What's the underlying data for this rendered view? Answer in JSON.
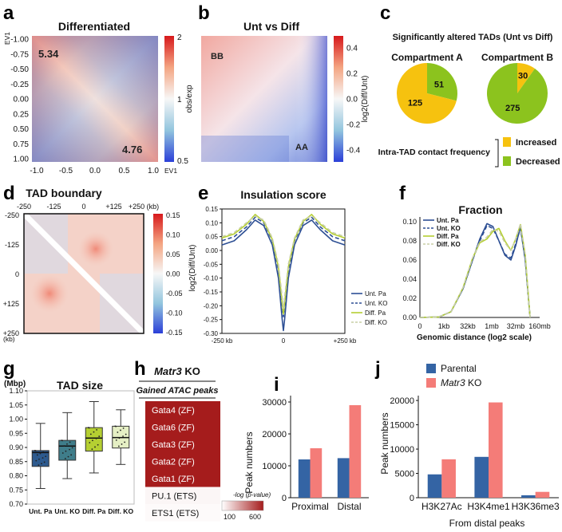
{
  "panels": {
    "a": {
      "label": "a",
      "title": "Differentiated",
      "axis_label": "EV1",
      "x_axis_label": "EV1",
      "x_ticks": [
        "-1.0",
        "-0.5",
        "0.0",
        "0.5",
        "1.0"
      ],
      "y_ticks": [
        "-1.00",
        "-0.75",
        "-0.50",
        "-0.25",
        "0.00",
        "0.25",
        "0.50",
        "0.75",
        "1.00"
      ],
      "annotations": [
        "5.34",
        "4.76"
      ],
      "colorbar_label": "obs/exp",
      "colorbar_ticks": [
        "2",
        "1",
        "0.5"
      ]
    },
    "b": {
      "label": "b",
      "title": "Unt vs Diff",
      "annotations": [
        "BB",
        "AA"
      ],
      "colorbar_label": "log2(Diff/Unt)",
      "colorbar_ticks": [
        "0.4",
        "0.2",
        "0.0",
        "-0.2",
        "-0.4"
      ]
    },
    "c": {
      "label": "c",
      "title": "Significantly altered TADs (Unt vs Diff)",
      "legend_title": "Intra-TAD contact frequency",
      "legend": [
        {
          "label": "Increased",
          "color": "#f6c20f"
        },
        {
          "label": "Decreased",
          "color": "#8cc31e"
        }
      ]
    },
    "d": {
      "label": "d",
      "title": "TAD boundary",
      "x_ticks": [
        "-250",
        "-125",
        "0",
        "+125",
        "+250 (kb)"
      ],
      "y_ticks": [
        "-250",
        "-125",
        "0",
        "+125",
        "+250"
      ],
      "y_unit": "(kb)",
      "colorbar_ticks": [
        "0.15",
        "0.10",
        "0.05",
        "0.00",
        "-0.05",
        "-0.10",
        "-0.15"
      ]
    },
    "e": {
      "label": "e"
    },
    "f": {
      "label": "f"
    },
    "g": {
      "label": "g"
    },
    "h": {
      "label": "h",
      "title_gene": "Matr3",
      "title_suffix": " KO",
      "subtitle": "Gained ATAC peaks",
      "rows": [
        "Gata4 (ZF)",
        "Gata6 (ZF)",
        "Gata3 (ZF)",
        "Gata2 (ZF)",
        "Gata1 (ZF)",
        "PU.1 (ETS)",
        "ETS1 (ETS)"
      ],
      "scale_label": "-log (p-value)",
      "scale_ticks": [
        "100",
        "600"
      ]
    },
    "i": {
      "label": "i"
    },
    "j": {
      "label": "j"
    }
  },
  "chart_data": [
    {
      "id": "c",
      "type": "pie",
      "charts": [
        {
          "title": "Compartment A",
          "slices": [
            {
              "label": "Decreased",
              "value": 51
            },
            {
              "label": "Increased",
              "value": 125
            }
          ]
        },
        {
          "title": "Compartment B",
          "slices": [
            {
              "label": "Increased",
              "value": 30
            },
            {
              "label": "Decreased",
              "value": 275
            }
          ]
        }
      ]
    },
    {
      "id": "e",
      "type": "line",
      "title": "Insulation score",
      "xlabel": "",
      "ylabel": "log2(Diff/Unt)",
      "x_ticks": [
        "-250 kb",
        "0",
        "+250 kb"
      ],
      "xlim": [
        -250,
        250
      ],
      "ylim": [
        -0.3,
        0.15
      ],
      "y_ticks": [
        "0.15",
        "0.10",
        "0.05",
        "0.00",
        "-0.05",
        "-0.10",
        "-0.15",
        "-0.20",
        "-0.25",
        "-0.30"
      ],
      "x": [
        -250,
        -200,
        -150,
        -115,
        -80,
        -45,
        -20,
        -5,
        0,
        5,
        20,
        45,
        80,
        115,
        150,
        200,
        250
      ],
      "series": [
        {
          "name": "Unt. Pa",
          "color": "#2d4f94",
          "dash": "",
          "values": [
            0.02,
            0.035,
            0.075,
            0.11,
            0.09,
            0.02,
            -0.1,
            -0.25,
            -0.29,
            -0.25,
            -0.1,
            0.02,
            0.09,
            0.11,
            0.075,
            0.035,
            0.02
          ]
        },
        {
          "name": "Unt. KO",
          "color": "#2d4f94",
          "dash": "5,3",
          "values": [
            0.035,
            0.05,
            0.085,
            0.12,
            0.1,
            0.035,
            -0.07,
            -0.2,
            -0.24,
            -0.2,
            -0.07,
            0.035,
            0.1,
            0.12,
            0.085,
            0.05,
            0.035
          ]
        },
        {
          "name": "Diff. Pa",
          "color": "#b5cf32",
          "dash": "",
          "values": [
            0.045,
            0.06,
            0.095,
            0.13,
            0.105,
            0.04,
            -0.06,
            -0.19,
            -0.23,
            -0.19,
            -0.06,
            0.04,
            0.105,
            0.13,
            0.095,
            0.06,
            0.045
          ]
        },
        {
          "name": "Diff. KO",
          "color": "#c8cfa5",
          "dash": "5,3",
          "values": [
            0.05,
            0.065,
            0.1,
            0.125,
            0.11,
            0.045,
            -0.05,
            -0.17,
            -0.21,
            -0.17,
            -0.05,
            0.045,
            0.11,
            0.125,
            0.1,
            0.065,
            0.05
          ]
        }
      ]
    },
    {
      "id": "f",
      "type": "line",
      "title": "Fraction",
      "xlabel": "Genomic distance (log2 scale)",
      "x_ticks": [
        "0",
        "1kb",
        "32kb",
        "1mb",
        "32mb",
        "160mb"
      ],
      "xlim": [
        0,
        5
      ],
      "ylim": [
        0,
        0.105
      ],
      "y_ticks": [
        "0.10",
        "0.08",
        "0.06",
        "0.04",
        "0.02",
        "0.00"
      ],
      "x": [
        0,
        0.8,
        1.3,
        1.8,
        2.2,
        2.5,
        2.8,
        3.05,
        3.3,
        3.55,
        3.8,
        4.0,
        4.2,
        4.4,
        4.6
      ],
      "series": [
        {
          "name": "Unt. Pa",
          "color": "#2d4f94",
          "dash": "",
          "values": [
            0,
            0.0005,
            0.006,
            0.03,
            0.06,
            0.082,
            0.098,
            0.095,
            0.08,
            0.065,
            0.06,
            0.075,
            0.095,
            0.06,
            0
          ]
        },
        {
          "name": "Unt. KO",
          "color": "#2d4f94",
          "dash": "5,3",
          "values": [
            0,
            0.0005,
            0.006,
            0.03,
            0.06,
            0.08,
            0.096,
            0.093,
            0.08,
            0.066,
            0.062,
            0.077,
            0.093,
            0.06,
            0
          ]
        },
        {
          "name": "Diff. Pa",
          "color": "#b5cf32",
          "dash": "",
          "values": [
            0,
            0.0005,
            0.006,
            0.031,
            0.062,
            0.078,
            0.082,
            0.09,
            0.093,
            0.08,
            0.07,
            0.082,
            0.097,
            0.065,
            0
          ]
        },
        {
          "name": "Diff. KO",
          "color": "#c8cfa5",
          "dash": "5,3",
          "values": [
            0,
            0.0005,
            0.006,
            0.031,
            0.062,
            0.079,
            0.084,
            0.092,
            0.09,
            0.078,
            0.07,
            0.082,
            0.098,
            0.065,
            0
          ]
        }
      ]
    },
    {
      "id": "g",
      "type": "box",
      "title": "TAD size",
      "ylabel": "(Mbp)",
      "ylim": [
        0.7,
        1.1
      ],
      "y_ticks": [
        "1.10",
        "1.05",
        "1.00",
        "0.95",
        "0.90",
        "0.85",
        "0.80",
        "0.75",
        "0.70"
      ],
      "boxes": [
        {
          "name": "Unt. Pa",
          "color": "#2d5a8e",
          "min": 0.755,
          "q1": 0.833,
          "median": 0.882,
          "q3": 0.889,
          "max": 0.985
        },
        {
          "name": "Unt. KO",
          "color": "#3f7d8a",
          "min": 0.79,
          "q1": 0.855,
          "median": 0.905,
          "q3": 0.925,
          "max": 1.023
        },
        {
          "name": "Diff. Pa",
          "color": "#b5cf32",
          "min": 0.81,
          "q1": 0.887,
          "median": 0.933,
          "q3": 0.97,
          "max": 1.062
        },
        {
          "name": "Diff. KO",
          "color": "#e5efc4",
          "min": 0.84,
          "q1": 0.898,
          "median": 0.935,
          "q3": 0.975,
          "max": 1.033
        }
      ]
    },
    {
      "id": "h",
      "type": "heatmap",
      "title": "Matr3 KO Gained ATAC peaks",
      "rows": [
        "Gata4 (ZF)",
        "Gata6 (ZF)",
        "Gata3 (ZF)",
        "Gata2 (ZF)",
        "Gata1 (ZF)",
        "PU.1 (ETS)",
        "ETS1 (ETS)"
      ],
      "values": [
        600,
        600,
        600,
        600,
        600,
        120,
        110
      ],
      "scale": [
        100,
        600
      ]
    },
    {
      "id": "i",
      "type": "bar",
      "ylabel": "Peak numbers",
      "categories": [
        "Proximal",
        "Distal"
      ],
      "ylim": [
        0,
        32000
      ],
      "y_ticks": [
        "30000",
        "20000",
        "10000",
        "0"
      ],
      "series": [
        {
          "name": "Parental",
          "color": "#3464a4",
          "values": [
            12000,
            12400
          ]
        },
        {
          "name": "Matr3 KO",
          "color": "#f47c78",
          "values": [
            15500,
            29000
          ]
        }
      ]
    },
    {
      "id": "j",
      "type": "bar",
      "ylabel": "Peak numbers",
      "xlabel": "From distal peaks",
      "categories": [
        "H3K27Ac",
        "H3K4me1",
        "H3K36me3"
      ],
      "ylim": [
        0,
        21000
      ],
      "y_ticks": [
        "20000",
        "15000",
        "10000",
        "5000",
        "0"
      ],
      "legend": [
        {
          "label": "Parental",
          "color": "#3464a4"
        },
        {
          "label": "Matr3",
          "suffix": " KO",
          "color": "#f47c78"
        }
      ],
      "series": [
        {
          "name": "Parental",
          "color": "#3464a4",
          "values": [
            4800,
            8400,
            500
          ]
        },
        {
          "name": "Matr3 KO",
          "color": "#f47c78",
          "values": [
            7900,
            19600,
            1200
          ]
        }
      ]
    }
  ]
}
